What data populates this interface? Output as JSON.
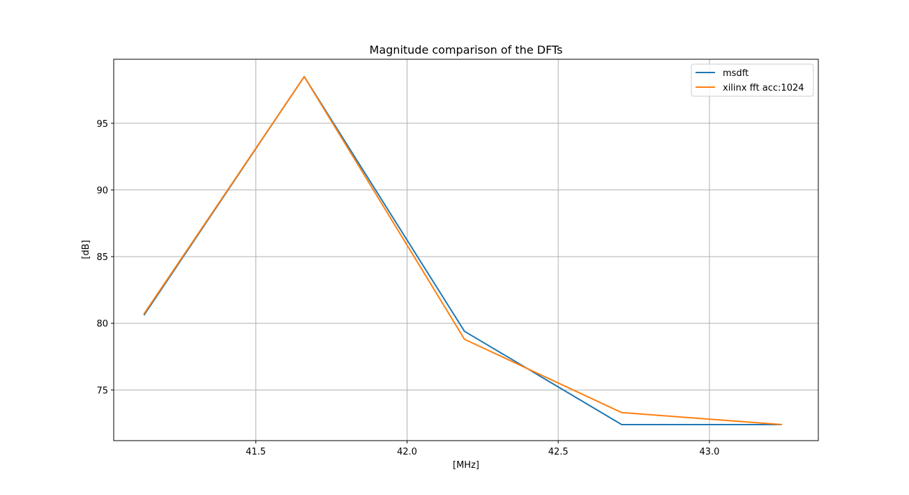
{
  "chart_data": {
    "type": "line",
    "title": "Magnitude comparison of the DFTs",
    "xlabel": "[MHz]",
    "ylabel": "[dB]",
    "xlim": [
      41.03,
      43.36
    ],
    "ylim": [
      71.2,
      99.8
    ],
    "xticks": [
      41.5,
      42.0,
      42.5,
      43.0
    ],
    "xtick_labels": [
      "41.5",
      "42.0",
      "42.5",
      "43.0"
    ],
    "yticks": [
      75,
      80,
      85,
      90,
      95
    ],
    "ytick_labels": [
      "75",
      "80",
      "85",
      "90",
      "95"
    ],
    "grid": true,
    "legend_position": "top-right",
    "series": [
      {
        "name": "msdft",
        "color": "#1f77b4",
        "x": [
          41.13,
          41.66,
          42.19,
          42.71,
          43.24
        ],
        "y": [
          80.6,
          98.5,
          79.4,
          72.4,
          72.4
        ]
      },
      {
        "name": "xilinx fft acc:1024",
        "color": "#ff7f0e",
        "x": [
          41.13,
          41.66,
          42.19,
          42.71,
          43.24
        ],
        "y": [
          80.7,
          98.5,
          78.8,
          73.3,
          72.4
        ]
      }
    ]
  }
}
